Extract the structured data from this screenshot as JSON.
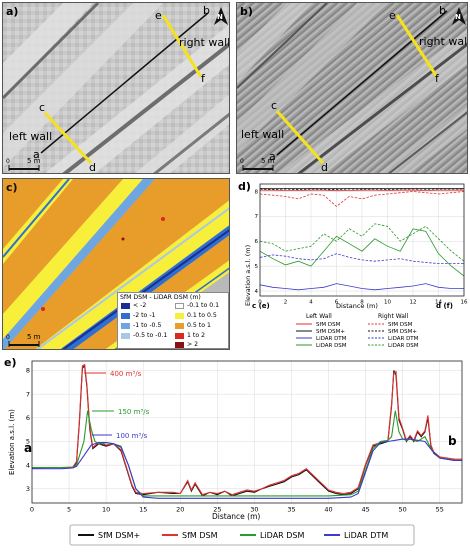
{
  "panels": {
    "a": {
      "label": "a)",
      "points": {
        "a": "a",
        "b": "b",
        "c": "c",
        "d": "d",
        "e": "e",
        "f": "f"
      },
      "left_wall": "left wall",
      "right_wall": "right wall",
      "scale": "5 m",
      "scale_zero": "0",
      "north": "N"
    },
    "b": {
      "label": "b)",
      "points": {
        "a": "a",
        "b": "b",
        "c": "c",
        "d": "d",
        "e": "e",
        "f": "f"
      },
      "left_wall": "left wall",
      "right_wall": "right wall",
      "scale": "5 m",
      "scale_zero": "0",
      "north": "N"
    },
    "c": {
      "label": "c)",
      "scale": "5 m",
      "scale_zero": "0",
      "legend": {
        "title": "SfM DSM - LiDAR DSM (m)",
        "items": [
          {
            "label": "< -2",
            "color": "#1a2f8f"
          },
          {
            "label": "-2 to -1",
            "color": "#2f6fd0"
          },
          {
            "label": "-1 to -0.5",
            "color": "#6da6e0"
          },
          {
            "label": "-0.5 to -0.1",
            "color": "#a9c8e6"
          },
          {
            "label": "-0.1 to 0.1",
            "color": "#ffffff"
          },
          {
            "label": "0.1 to 0.5",
            "color": "#f7ef3a"
          },
          {
            "label": "0.5 to 1",
            "color": "#e89c2a"
          },
          {
            "label": "1 to 2",
            "color": "#d8281f"
          },
          {
            "label": "> 2",
            "color": "#8a0f12"
          }
        ]
      }
    },
    "d": {
      "label": "d)",
      "left_end": "c (e)",
      "right_end": "d (f)",
      "legend": {
        "left_header": "Left Wall",
        "right_header": "Right Wall",
        "rows": [
          {
            "left": "SfM DSM",
            "right": "SfM DSM",
            "color": "#e03030"
          },
          {
            "left": "SfM DSM+",
            "right": "SfM DSM+",
            "color": "#111111"
          },
          {
            "left": "LiDAR DTM",
            "right": "LiDAR DTM",
            "color": "#3b3bcc"
          },
          {
            "left": "LiDAR DSM",
            "right": "LiDAR DSM",
            "color": "#2a9a2a"
          }
        ]
      }
    },
    "e": {
      "label": "e)",
      "left_end": "a",
      "right_end": "b",
      "annotations": [
        {
          "text": "400 m³/s",
          "color": "#e03030"
        },
        {
          "text": "150 m³/s",
          "color": "#2a9a2a"
        },
        {
          "text": "100 m³/s",
          "color": "#3b3bcc"
        }
      ]
    }
  },
  "chart_data": [
    {
      "type": "line",
      "title": "",
      "xlabel": "Distance (m)",
      "ylabel": "Elevation a.s.l. (m)",
      "xlim": [
        0,
        16
      ],
      "ylim": [
        3.8,
        8.3
      ],
      "xticks": [
        0,
        2,
        4,
        6,
        8,
        10,
        12,
        14,
        16
      ],
      "yticks": [
        4,
        5,
        6,
        7,
        8
      ],
      "series": [
        {
          "name": "Left Wall SfM DSM",
          "color": "#e03030",
          "dash": "solid",
          "x": [
            0,
            1,
            2,
            3,
            4,
            5,
            6,
            7,
            8,
            9,
            10,
            11,
            12,
            13,
            14,
            15,
            16
          ],
          "y": [
            8.05,
            8.05,
            8.04,
            8.04,
            8.05,
            8.05,
            8.03,
            8.04,
            8.05,
            8.05,
            8.04,
            8.05,
            8.05,
            8.04,
            8.05,
            8.05,
            8.05
          ]
        },
        {
          "name": "Left Wall SfM DSM+",
          "color": "#111111",
          "dash": "solid",
          "x": [
            0,
            1,
            2,
            3,
            4,
            5,
            6,
            7,
            8,
            9,
            10,
            11,
            12,
            13,
            14,
            15,
            16
          ],
          "y": [
            8.12,
            8.12,
            8.12,
            8.12,
            8.12,
            8.12,
            8.12,
            8.12,
            8.12,
            8.12,
            8.12,
            8.12,
            8.12,
            8.12,
            8.12,
            8.12,
            8.12
          ]
        },
        {
          "name": "Left Wall LiDAR DTM",
          "color": "#3b3bcc",
          "dash": "solid",
          "x": [
            0,
            1,
            2,
            3,
            4,
            5,
            6,
            7,
            8,
            9,
            10,
            11,
            12,
            13,
            14,
            15,
            16
          ],
          "y": [
            4.25,
            4.15,
            4.1,
            4.05,
            4.1,
            4.15,
            4.3,
            4.2,
            4.1,
            4.05,
            4.1,
            4.15,
            4.2,
            4.3,
            4.15,
            4.1,
            4.1
          ]
        },
        {
          "name": "Left Wall LiDAR DSM",
          "color": "#2a9a2a",
          "dash": "solid",
          "x": [
            0,
            1,
            2,
            3,
            4,
            5,
            6,
            7,
            8,
            9,
            10,
            11,
            12,
            13,
            14,
            15,
            16
          ],
          "y": [
            5.6,
            5.3,
            5.05,
            5.2,
            5.0,
            5.6,
            6.2,
            5.9,
            5.6,
            6.1,
            5.8,
            5.6,
            6.5,
            6.4,
            5.5,
            5.0,
            4.6
          ]
        },
        {
          "name": "Right Wall SfM DSM",
          "color": "#e03030",
          "dash": "dashed",
          "x": [
            0,
            1,
            2,
            3,
            4,
            5,
            6,
            7,
            8,
            9,
            10,
            11,
            12,
            13,
            14,
            15,
            16
          ],
          "y": [
            7.9,
            7.85,
            7.8,
            7.7,
            7.9,
            7.85,
            7.4,
            7.8,
            7.7,
            7.85,
            7.9,
            7.95,
            8.0,
            7.95,
            7.9,
            7.95,
            8.0
          ]
        },
        {
          "name": "Right Wall SfM DSM+",
          "color": "#111111",
          "dash": "dashed",
          "x": [
            0,
            1,
            2,
            3,
            4,
            5,
            6,
            7,
            8,
            9,
            10,
            11,
            12,
            13,
            14,
            15,
            16
          ],
          "y": [
            8.1,
            8.08,
            8.1,
            8.07,
            8.1,
            8.09,
            8.08,
            8.1,
            8.09,
            8.1,
            8.08,
            8.1,
            8.1,
            8.09,
            8.1,
            8.1,
            8.1
          ]
        },
        {
          "name": "Right Wall LiDAR DTM",
          "color": "#3b3bcc",
          "dash": "dashed",
          "x": [
            0,
            1,
            2,
            3,
            4,
            5,
            6,
            7,
            8,
            9,
            10,
            11,
            12,
            13,
            14,
            15,
            16
          ],
          "y": [
            5.35,
            5.45,
            5.4,
            5.3,
            5.25,
            5.3,
            5.5,
            5.35,
            5.25,
            5.2,
            5.25,
            5.3,
            5.2,
            5.15,
            5.1,
            5.1,
            5.1
          ]
        },
        {
          "name": "Right Wall LiDAR DSM",
          "color": "#2a9a2a",
          "dash": "dashed",
          "x": [
            0,
            1,
            2,
            3,
            4,
            5,
            6,
            7,
            8,
            9,
            10,
            11,
            12,
            13,
            14,
            15,
            16
          ],
          "y": [
            6.0,
            5.9,
            5.6,
            5.7,
            5.8,
            6.3,
            6.0,
            6.5,
            6.2,
            6.7,
            6.6,
            6.0,
            6.3,
            6.6,
            6.1,
            5.6,
            5.2
          ]
        }
      ]
    },
    {
      "type": "line",
      "title": "",
      "xlabel": "Distance (m)",
      "ylabel": "Elevation a.s.l. (m)",
      "xlim": [
        0,
        58
      ],
      "ylim": [
        2.4,
        8.4
      ],
      "xticks": [
        0,
        5,
        10,
        15,
        20,
        25,
        30,
        35,
        40,
        45,
        50,
        55
      ],
      "yticks": [
        3,
        4,
        5,
        6,
        7,
        8
      ],
      "series": [
        {
          "name": "SfM DSM+",
          "color": "#111111",
          "x": [
            0,
            2,
            4,
            5.5,
            6,
            6.4,
            6.8,
            7.1,
            7.4,
            7.8,
            8.2,
            9,
            10,
            11,
            12,
            13,
            13.5,
            14,
            15,
            17,
            19,
            20,
            21,
            21.5,
            22,
            23,
            24,
            25,
            26,
            27,
            28,
            29,
            30,
            31,
            32,
            33,
            34,
            35,
            36,
            37,
            38,
            39,
            40,
            41,
            42,
            43,
            44,
            45,
            46,
            47,
            48,
            48.5,
            48.8,
            49.1,
            49.5,
            50,
            50.5,
            51,
            51.5,
            52,
            52.5,
            53,
            53.4,
            53.8,
            54.2,
            55,
            56,
            57,
            58
          ],
          "y": [
            3.9,
            3.9,
            3.9,
            3.9,
            4.1,
            5.8,
            8.1,
            8.2,
            7.3,
            5.5,
            4.7,
            4.9,
            4.8,
            4.9,
            4.6,
            3.6,
            3.1,
            2.8,
            2.75,
            2.85,
            2.8,
            2.8,
            3.3,
            2.9,
            3.2,
            2.7,
            2.85,
            2.75,
            2.9,
            2.7,
            2.8,
            2.9,
            2.85,
            3.0,
            3.1,
            3.2,
            3.3,
            3.5,
            3.6,
            3.8,
            3.5,
            3.2,
            2.9,
            2.8,
            2.75,
            2.8,
            3.0,
            4.0,
            4.8,
            4.9,
            5.0,
            6.5,
            8.0,
            7.8,
            5.9,
            5.5,
            5.0,
            5.2,
            5.0,
            5.4,
            5.2,
            5.4,
            6.0,
            4.8,
            4.5,
            4.3,
            4.25,
            4.2,
            4.2
          ]
        },
        {
          "name": "SfM DSM",
          "color": "#e03030",
          "x": [
            0,
            2,
            4,
            5.5,
            6,
            6.4,
            6.8,
            7.1,
            7.4,
            7.8,
            8.2,
            9,
            10,
            11,
            12,
            13,
            13.5,
            14,
            15,
            17,
            19,
            20,
            21,
            21.5,
            22,
            23,
            24,
            25,
            26,
            27,
            28,
            29,
            30,
            31,
            32,
            33,
            34,
            35,
            36,
            37,
            38,
            39,
            40,
            41,
            42,
            43,
            44,
            45,
            46,
            47,
            48,
            48.5,
            48.8,
            49.1,
            49.5,
            50,
            50.5,
            51,
            51.5,
            52,
            52.5,
            53,
            53.4,
            53.8,
            54.2,
            55,
            56,
            57,
            58
          ],
          "y": [
            3.88,
            3.9,
            3.9,
            3.92,
            4.15,
            5.9,
            8.2,
            8.25,
            7.4,
            5.6,
            4.75,
            4.95,
            4.85,
            4.9,
            4.65,
            3.65,
            3.15,
            2.85,
            2.8,
            2.85,
            2.85,
            2.8,
            3.35,
            2.95,
            3.25,
            2.75,
            2.85,
            2.8,
            2.9,
            2.75,
            2.85,
            2.95,
            2.9,
            3.0,
            3.15,
            3.25,
            3.35,
            3.55,
            3.65,
            3.85,
            3.55,
            3.25,
            2.95,
            2.85,
            2.8,
            2.85,
            3.05,
            4.05,
            4.85,
            4.95,
            5.05,
            6.6,
            7.9,
            7.95,
            6.0,
            5.55,
            5.05,
            5.25,
            5.05,
            5.45,
            5.25,
            5.45,
            6.1,
            4.85,
            4.55,
            4.35,
            4.3,
            4.25,
            4.25
          ]
        },
        {
          "name": "LiDAR DSM",
          "color": "#2a9a2a",
          "x": [
            0,
            2,
            4,
            5.5,
            6,
            7,
            7.5,
            8,
            8.5,
            9,
            9.5,
            10,
            11,
            12,
            13,
            14,
            15,
            17,
            20,
            25,
            30,
            35,
            40,
            43,
            44,
            45,
            46,
            47,
            48,
            48.5,
            49,
            49.5,
            50,
            50.5,
            51,
            52,
            53,
            54,
            55,
            56,
            57,
            58
          ],
          "y": [
            3.9,
            3.9,
            3.9,
            3.9,
            4.0,
            5.0,
            6.3,
            5.5,
            5.0,
            4.9,
            4.9,
            4.95,
            4.9,
            4.8,
            4.0,
            3.0,
            2.7,
            2.7,
            2.7,
            2.7,
            2.7,
            2.7,
            2.7,
            2.75,
            2.9,
            3.8,
            4.7,
            5.0,
            5.05,
            5.2,
            6.3,
            5.4,
            5.1,
            5.05,
            5.1,
            5.0,
            5.2,
            4.6,
            4.3,
            4.25,
            4.2,
            4.2
          ]
        },
        {
          "name": "LiDAR DTM",
          "color": "#3b3bcc",
          "x": [
            0,
            2,
            4,
            5.5,
            6,
            7,
            8,
            9,
            10,
            11,
            12,
            13,
            14,
            15,
            17,
            20,
            25,
            30,
            35,
            40,
            43,
            44,
            45,
            46,
            47,
            48,
            49,
            50,
            51,
            52,
            53,
            54,
            55,
            56,
            57,
            58
          ],
          "y": [
            3.85,
            3.85,
            3.85,
            3.88,
            3.95,
            4.4,
            4.85,
            4.95,
            4.95,
            4.9,
            4.75,
            4.0,
            3.0,
            2.65,
            2.6,
            2.6,
            2.6,
            2.6,
            2.6,
            2.6,
            2.65,
            2.8,
            3.7,
            4.6,
            4.95,
            5.0,
            5.05,
            5.1,
            5.1,
            5.05,
            5.0,
            4.6,
            4.3,
            4.25,
            4.2,
            4.2
          ]
        }
      ]
    }
  ]
}
